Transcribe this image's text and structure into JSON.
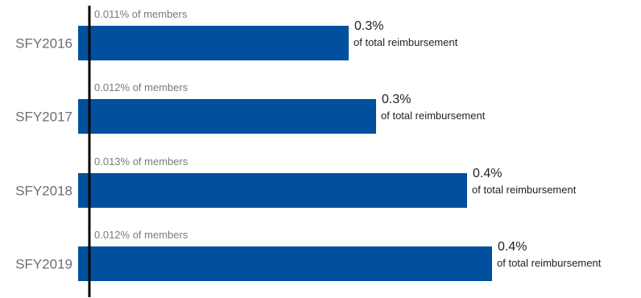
{
  "chart_data": {
    "type": "bar",
    "orientation": "horizontal",
    "categories": [
      "SFY2016",
      "SFY2017",
      "SFY2018",
      "SFY2019"
    ],
    "values": [
      0.3,
      0.3,
      0.4,
      0.4
    ],
    "value_labels": [
      "0.3%",
      "0.3%",
      "0.4%",
      "0.4%"
    ],
    "value_sublabel": "of total reimbursement",
    "member_labels": [
      "0.011% of members",
      "0.012% of members",
      "0.013% of members",
      "0.012% of members"
    ],
    "bar_color": "#00509e",
    "axis_color": "#000000",
    "grid": false
  }
}
